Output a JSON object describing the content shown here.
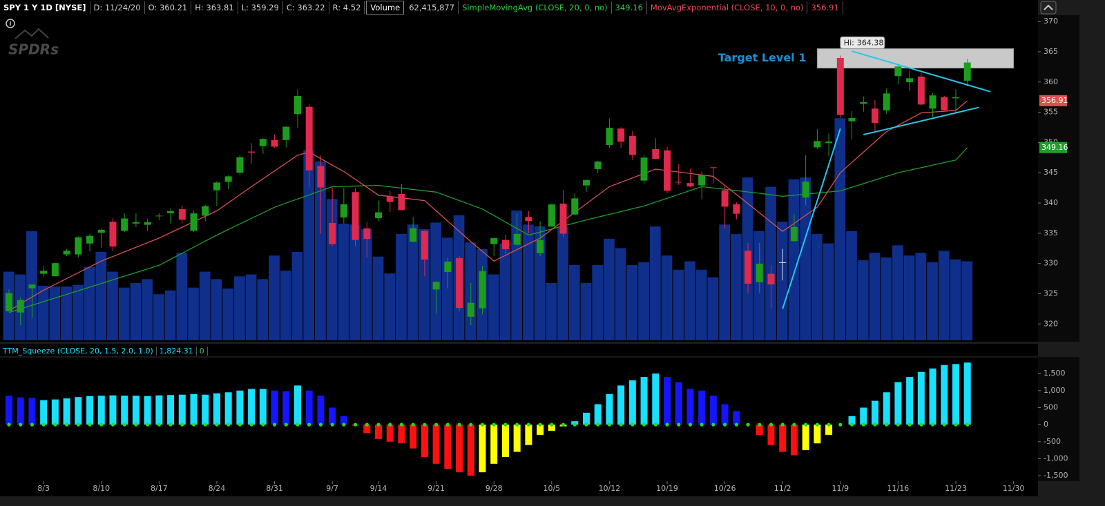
{
  "header": {
    "items": [
      "SPY 1 Y 1D [NYSE]",
      "D: 11/24/20",
      "O: 360.21",
      "H: 363.81",
      "L: 359.29",
      "C: 363.22",
      "R: 4.52"
    ],
    "volume_text": "62,415,877"
  },
  "logo": "SPDRs",
  "chart_data": [
    {
      "type": "candlestick",
      "x": [
        "7/29",
        "7/30",
        "7/31",
        "8/3",
        "8/4",
        "8/5",
        "8/6",
        "8/7",
        "8/10",
        "8/11",
        "8/12",
        "8/13",
        "8/14",
        "8/17",
        "8/18",
        "8/19",
        "8/20",
        "8/21",
        "8/24",
        "8/25",
        "8/26",
        "8/27",
        "8/28",
        "8/31",
        "9/1",
        "9/2",
        "9/3",
        "9/4",
        "9/8",
        "9/9",
        "9/10",
        "9/11",
        "9/14",
        "9/15",
        "9/16",
        "9/17",
        "9/18",
        "9/21",
        "9/22",
        "9/23",
        "9/24",
        "9/25",
        "9/28",
        "9/29",
        "9/30",
        "10/1",
        "10/2",
        "10/5",
        "10/6",
        "10/7",
        "10/8",
        "10/9",
        "10/12",
        "10/13",
        "10/14",
        "10/15",
        "10/16",
        "10/19",
        "10/20",
        "10/21",
        "10/22",
        "10/23",
        "10/26",
        "10/27",
        "10/28",
        "10/29",
        "10/30",
        "11/2",
        "11/3",
        "11/4",
        "11/5",
        "11/6",
        "11/9",
        "11/10",
        "11/11",
        "11/12",
        "11/13",
        "11/16",
        "11/17",
        "11/18",
        "11/19",
        "11/20",
        "11/23",
        "11/24"
      ],
      "open": [
        322.1,
        321.9,
        325.9,
        328.3,
        327.9,
        331.5,
        331.5,
        333.3,
        335.1,
        336.9,
        335.4,
        336.6,
        336.4,
        337.9,
        338.3,
        339.0,
        335.4,
        337.9,
        342.1,
        343.5,
        345.0,
        348.5,
        349.4,
        350.4,
        350.4,
        354.7,
        355.9,
        346.1,
        336.7,
        337.6,
        341.8,
        335.8,
        337.5,
        341.1,
        341.5,
        333.6,
        335.4,
        325.7,
        328.6,
        330.9,
        321.2,
        322.6,
        333.2,
        333.9,
        333.1,
        337.7,
        331.7,
        336.1,
        339.9,
        338.1,
        342.9,
        345.6,
        349.6,
        352.3,
        351.1,
        343.7,
        348.9,
        348.7,
        343.5,
        343.3,
        342.9,
        345.9,
        342.1,
        339.8,
        332.1,
        326.9,
        328.3,
        330.2,
        333.7,
        340.9,
        349.2,
        349.9,
        363.97,
        353.5,
        356.4,
        355.6,
        355.3,
        360.98,
        359.97,
        360.9,
        355.6,
        357.5,
        357.3,
        360.21
      ],
      "high": [
        325.7,
        324.4,
        326.6,
        329.6,
        330.1,
        332.4,
        334.5,
        334.9,
        335.8,
        337.5,
        338.3,
        338.3,
        337.4,
        338.3,
        339.1,
        339.6,
        338.8,
        339.7,
        343.6,
        344.6,
        347.9,
        349.9,
        350.7,
        351.3,
        352.7,
        358.8,
        356.4,
        347.8,
        342.6,
        342.5,
        342.5,
        336.9,
        340.4,
        342.0,
        343.1,
        337.7,
        335.5,
        327.1,
        330.9,
        331.2,
        326.8,
        329.6,
        334.0,
        334.8,
        338.3,
        338.7,
        337.0,
        339.9,
        342.2,
        341.6,
        343.9,
        347.0,
        354.0,
        352.5,
        351.9,
        348.0,
        350.7,
        349.3,
        346.4,
        345.7,
        345.2,
        346.0,
        342.9,
        340.1,
        333.4,
        333.4,
        329.7,
        332.4,
        338.2,
        347.9,
        352.2,
        351.5,
        364.38,
        355.2,
        357.6,
        357.0,
        358.9,
        362.8,
        361.9,
        361.5,
        358.2,
        357.7,
        358.8,
        363.81
      ],
      "low": [
        322.0,
        319.8,
        321.0,
        327.7,
        327.9,
        331.2,
        331.0,
        332.0,
        332.6,
        332.0,
        335.2,
        336.0,
        335.4,
        337.2,
        336.6,
        336.6,
        335.2,
        337.0,
        339.5,
        342.3,
        344.7,
        346.5,
        348.1,
        349.1,
        349.2,
        352.4,
        342.6,
        334.9,
        332.9,
        336.6,
        332.9,
        331.0,
        337.0,
        338.5,
        338.8,
        333.5,
        327.9,
        321.7,
        325.9,
        322.1,
        319.8,
        321.6,
        331.2,
        331.6,
        332.9,
        335.0,
        331.2,
        336.1,
        334.4,
        338.0,
        341.8,
        344.9,
        349.1,
        349.1,
        347.1,
        343.1,
        347.2,
        341.6,
        343.0,
        342.6,
        340.6,
        343.2,
        335.7,
        337.3,
        325.1,
        325.1,
        322.6,
        327.2,
        333.5,
        339.6,
        348.9,
        347.7,
        354.06,
        350.5,
        355.1,
        351.6,
        354.7,
        359.6,
        358.5,
        356.2,
        354.2,
        355.1,
        354.9,
        359.29
      ],
      "close": [
        325.1,
        323.96,
        326.52,
        328.79,
        330.06,
        332.11,
        334.33,
        334.57,
        335.57,
        332.8,
        337.44,
        336.83,
        336.84,
        337.91,
        338.64,
        337.23,
        338.28,
        339.48,
        343.38,
        344.41,
        347.57,
        348.33,
        350.58,
        349.31,
        352.6,
        357.7,
        345.39,
        342.57,
        333.21,
        339.79,
        333.89,
        334.06,
        338.46,
        340.17,
        338.82,
        335.84,
        330.65,
        326.97,
        330.3,
        322.64,
        323.5,
        328.73,
        334.19,
        332.37,
        334.89,
        337.04,
        333.84,
        339.76,
        334.93,
        340.76,
        343.78,
        346.85,
        352.43,
        350.13,
        347.93,
        347.5,
        347.29,
        342.01,
        343.38,
        342.73,
        344.61,
        345.78,
        339.39,
        338.22,
        326.66,
        329.98,
        326.54,
        330.2,
        336.03,
        343.54,
        350.24,
        350.16,
        354.56,
        354.04,
        356.67,
        353.21,
        358.1,
        362.57,
        360.62,
        356.28,
        357.78,
        355.33,
        357.46,
        363.22
      ],
      "up_color": "#1c9e1c",
      "down_color": "#e0294d",
      "flat_color": "#dddddd",
      "ylim": [
        317.3,
        370.7
      ],
      "yticks": [
        320,
        325,
        330,
        335,
        340,
        345,
        350,
        355,
        360,
        365,
        370
      ],
      "xticks": [
        "8/3",
        "8/10",
        "8/17",
        "8/24",
        "8/31",
        "9/7",
        "9/14",
        "9/21",
        "9/28",
        "10/5",
        "10/12",
        "10/19",
        "10/26",
        "11/2",
        "11/9",
        "11/16",
        "11/23",
        "11/30"
      ],
      "volume": {
        "name": "Volume",
        "color": "#0f2f8a",
        "ylim": [
          0,
          255000000
        ],
        "values": [
          54200000,
          52000000,
          86200000,
          43100000,
          42400000,
          42400000,
          43800000,
          58000000,
          69800000,
          54200000,
          41600000,
          45300000,
          48300000,
          36400000,
          39400000,
          69100000,
          41600000,
          54200000,
          48300000,
          40900000,
          50500000,
          52000000,
          48300000,
          66900000,
          55000000,
          69800000,
          150100000,
          141200000,
          111500000,
          92100000,
          91400000,
          87700000,
          66100000,
          52800000,
          84000000,
          91400000,
          87700000,
          92900000,
          81000000,
          98800000,
          77300000,
          72100000,
          52000000,
          76500000,
          102500000,
          91400000,
          89900000,
          45300000,
          89900000,
          59400000,
          45300000,
          59400000,
          80200000,
          72800000,
          59400000,
          61700000,
          89900000,
          66900000,
          55700000,
          62400000,
          55700000,
          49800000,
          91400000,
          84000000,
          128500000,
          86200000,
          121100000,
          93600000,
          127100000,
          128500000,
          84000000,
          76500000,
          175300000,
          86200000,
          63200000,
          69100000,
          65400000,
          75000000,
          66900000,
          69100000,
          61700000,
          70600000,
          63900000,
          62415877
        ]
      },
      "series": [
        {
          "name": "SimpleMovingAvg (CLOSE, 20, 0, no)",
          "color": "#1f9e2a",
          "x": [
            "7/29",
            "8/3",
            "8/10",
            "8/17",
            "8/24",
            "8/31",
            "9/8",
            "9/14",
            "9/21",
            "9/25",
            "10/1",
            "10/8",
            "10/15",
            "10/22",
            "10/29",
            "11/2",
            "11/9",
            "11/16",
            "11/23",
            "11/24"
          ],
          "values": [
            321.9,
            323.7,
            326.7,
            329.7,
            334.7,
            339.3,
            342.7,
            342.9,
            341.8,
            339.0,
            334.7,
            337.2,
            339.5,
            342.7,
            341.6,
            341.1,
            342.0,
            345.0,
            347.1,
            349.16
          ]
        },
        {
          "name": "MovAvgExponential (CLOSE, 10, 0, no)",
          "color": "#d9534f",
          "x": [
            "7/29",
            "8/3",
            "8/10",
            "8/17",
            "8/24",
            "8/27",
            "9/2",
            "9/3",
            "9/9",
            "9/14",
            "9/18",
            "9/24",
            "9/28",
            "10/2",
            "10/12",
            "10/16",
            "10/23",
            "10/28",
            "11/2",
            "11/5",
            "11/9",
            "11/13",
            "11/18",
            "11/23",
            "11/24"
          ],
          "values": [
            322.2,
            325.6,
            330.4,
            334.2,
            338.7,
            342.7,
            347.9,
            348.4,
            345.2,
            341.3,
            340.4,
            333.6,
            330.4,
            334.2,
            342.7,
            345.6,
            344.4,
            339.9,
            335.3,
            339.3,
            345.0,
            351.8,
            354.9,
            355.3,
            356.91
          ]
        }
      ],
      "annotation": {
        "text": "Target Level 1",
        "color": "#1e8ecf",
        "zone": [
          362.3,
          365.5
        ],
        "zone_from": "11/5",
        "zone_to": "11/30",
        "zone_color": "#c9c9c9",
        "hi_label": "Hi:",
        "hi_at": "11/9"
      },
      "trendline_color": "#27c6ea",
      "trendlines": [
        {
          "from": "11/2",
          "from_value": 322.5,
          "to": "11/9",
          "to_value": 352.3
        },
        {
          "from": "11/10",
          "from_value": 365.1,
          "to": "11/27",
          "to_value": 358.4
        },
        {
          "from": "11/11",
          "from_value": 351.3,
          "to": "11/25",
          "to_value": 355.8
        }
      ]
    },
    {
      "type": "bar",
      "name": "TTM_Squeeze (CLOSE, 20, 1.5, 2.0, 1.0)",
      "last_label": "1,824.31",
      "squeeze_state": 0,
      "dot_color": "#22dd22",
      "values": [
        850,
        800,
        780,
        720,
        740,
        770,
        810,
        840,
        850,
        860,
        850,
        850,
        840,
        860,
        870,
        880,
        900,
        880,
        920,
        950,
        1000,
        1050,
        1050,
        1000,
        980,
        1150,
        1000,
        850,
        500,
        250,
        -30,
        -250,
        -420,
        -500,
        -550,
        -700,
        -950,
        -1150,
        -1300,
        -1400,
        -1500,
        -1400,
        -1150,
        -950,
        -800,
        -600,
        -300,
        -180,
        -50,
        100,
        350,
        600,
        900,
        1150,
        1300,
        1400,
        1500,
        1400,
        1250,
        1050,
        1000,
        850,
        600,
        400,
        0,
        -300,
        -600,
        -800,
        -900,
        -750,
        -550,
        -300,
        0,
        250,
        500,
        700,
        950,
        1250,
        1400,
        1550,
        1650,
        1750,
        1780,
        1824.31
      ],
      "colors": [
        "#1515ff",
        "#1515ff",
        "#1515ff",
        "#19e0ff",
        "#19e0ff",
        "#19e0ff",
        "#19e0ff",
        "#19e0ff",
        "#19e0ff",
        "#19e0ff",
        "#19e0ff",
        "#19e0ff",
        "#19e0ff",
        "#19e0ff",
        "#19e0ff",
        "#19e0ff",
        "#19e0ff",
        "#19e0ff",
        "#19e0ff",
        "#19e0ff",
        "#19e0ff",
        "#19e0ff",
        "#19e0ff",
        "#1515ff",
        "#1515ff",
        "#19e0ff",
        "#1515ff",
        "#1515ff",
        "#1515ff",
        "#1515ff",
        "#ff1010",
        "#ff1010",
        "#ff1010",
        "#ff1010",
        "#ff1010",
        "#ff1010",
        "#ff1010",
        "#ff1010",
        "#ff1010",
        "#ff1010",
        "#ff1010",
        "#ffff00",
        "#ffff00",
        "#ffff00",
        "#ffff00",
        "#ffff00",
        "#ffff00",
        "#ffff00",
        "#ffff00",
        "#19e0ff",
        "#19e0ff",
        "#19e0ff",
        "#19e0ff",
        "#19e0ff",
        "#19e0ff",
        "#19e0ff",
        "#19e0ff",
        "#1515ff",
        "#1515ff",
        "#1515ff",
        "#1515ff",
        "#1515ff",
        "#1515ff",
        "#1515ff",
        "#1515ff",
        "#ff1010",
        "#ff1010",
        "#ff1010",
        "#ff1010",
        "#ffff00",
        "#ffff00",
        "#ffff00",
        "#19e0ff",
        "#19e0ff",
        "#19e0ff",
        "#19e0ff",
        "#19e0ff",
        "#19e0ff",
        "#19e0ff",
        "#19e0ff",
        "#19e0ff",
        "#19e0ff",
        "#19e0ff",
        "#19e0ff"
      ],
      "ylim": [
        -1620,
        1990
      ],
      "yticks": [
        {
          "value": 1500,
          "label": "1,500"
        },
        {
          "value": 1000,
          "label": "1,000"
        },
        500,
        0,
        -500,
        {
          "value": -1000,
          "label": "-1,000"
        },
        {
          "value": -1500,
          "label": "-1,500"
        }
      ]
    }
  ]
}
